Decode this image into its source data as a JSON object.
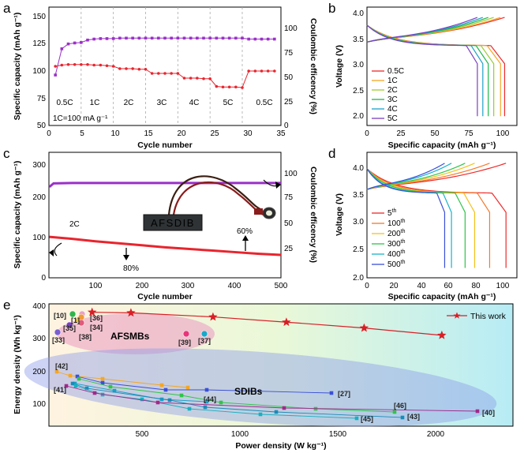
{
  "panels": {
    "a": {
      "label": "a",
      "xlabel": "Cycle number",
      "ylabel_left": "Specific capacity (mAh g⁻¹)",
      "ylabel_right": "Coulombic efficency (%)",
      "xticks": [
        "0",
        "5",
        "10",
        "15",
        "20",
        "25",
        "30",
        "35"
      ],
      "yticks_left": [
        "50",
        "75",
        "100",
        "125",
        "150"
      ],
      "yticks_right": [
        "0",
        "25",
        "50",
        "75",
        "100"
      ],
      "rate_labels": [
        "0.5C",
        "1C",
        "2C",
        "3C",
        "4C",
        "5C",
        "0.5C"
      ],
      "note": "1C=100 mA g⁻¹"
    },
    "b": {
      "label": "b",
      "xlabel": "Specific capacity (mAh g⁻¹)",
      "ylabel": "Voltage (V)",
      "xticks": [
        "0",
        "25",
        "50",
        "75",
        "100"
      ],
      "yticks": [
        "2.0",
        "2.5",
        "3.0",
        "3.5",
        "4.0"
      ],
      "legend": [
        "0.5C",
        "1C",
        "2C",
        "3C",
        "4C",
        "5C"
      ]
    },
    "c": {
      "label": "c",
      "xlabel": "Cycle number",
      "ylabel_left": "Specific capacity (mAh g⁻¹)",
      "ylabel_right": "Coulombic efficency (%)",
      "xticks": [
        "100",
        "200",
        "300",
        "400",
        "500"
      ],
      "yticks_left": [
        "0",
        "100",
        "200",
        "300"
      ],
      "yticks_right": [
        "25",
        "50",
        "75",
        "100"
      ],
      "rate": "2C",
      "ann_80": "80%",
      "ann_60": "60%",
      "device_text": "AFSDIB"
    },
    "d": {
      "label": "d",
      "xlabel": "Specific capacity (mAh g⁻¹)",
      "ylabel": "Voltage (V)",
      "xticks": [
        "0",
        "20",
        "40",
        "60",
        "80",
        "100"
      ],
      "yticks": [
        "2.0",
        "2.5",
        "3.0",
        "3.5",
        "4.0"
      ],
      "legend": [
        {
          "num": "5",
          "sup": "th"
        },
        {
          "num": "100",
          "sup": "th"
        },
        {
          "num": "200",
          "sup": "th"
        },
        {
          "num": "300",
          "sup": "th"
        },
        {
          "num": "400",
          "sup": "th"
        },
        {
          "num": "500",
          "sup": "th"
        }
      ]
    },
    "e": {
      "label": "e",
      "xlabel": "Power density (W kg⁻¹)",
      "ylabel": "Energy density (Wh kg⁻¹)",
      "xticks": [
        "500",
        "1000",
        "1500",
        "2000"
      ],
      "yticks": [
        "100",
        "200",
        "300",
        "400"
      ],
      "legend": "This work",
      "group_labels": [
        "AFSMBs",
        "SDIBs"
      ],
      "refs": [
        "[10]",
        "[1]",
        "[36]",
        "[35]",
        "[34]",
        "[38]",
        "[33]",
        "[39]",
        "[37]",
        "[42]",
        "[41]",
        "[44]",
        "[27]",
        "[46]",
        "[43]",
        "[45]",
        "[40]"
      ]
    }
  },
  "colors": {
    "a_capacity": "#e8252e",
    "a_ce": "#9b30c8",
    "c_capacity": "#e8252e",
    "c_ce": "#9b30c8",
    "this_work": "#d81f26",
    "b_curves": [
      "#ee2a2a",
      "#f5a623",
      "#9acd32",
      "#1db84a",
      "#1aa0c8",
      "#7a3fc0"
    ],
    "d_curves": [
      "#ee2a2a",
      "#f57a2a",
      "#f2c21b",
      "#2fc44a",
      "#18b3c8",
      "#3a4fd8"
    ]
  },
  "chart_data": [
    {
      "panel": "a",
      "type": "line",
      "xlabel": "Cycle number",
      "ylabel": "Specific capacity (mAh g⁻¹)",
      "xlim": [
        0,
        36
      ],
      "ylim": [
        50,
        150
      ],
      "y2lim": [
        0,
        100
      ],
      "series": [
        {
          "axis": "left",
          "x": [
            1,
            2,
            3,
            4,
            5,
            6,
            7,
            8,
            9,
            10,
            11,
            12,
            13,
            14,
            15,
            16,
            17,
            18,
            19,
            20,
            21,
            22,
            23,
            24,
            25,
            26,
            27,
            28,
            29,
            30,
            31,
            32,
            33,
            34,
            35
          ],
          "y": [
            100,
            101,
            101.5,
            101.5,
            101.5,
            101.5,
            101,
            101,
            100.5,
            100,
            98,
            98,
            98,
            97.5,
            97.5,
            94,
            94,
            94,
            94,
            94,
            90,
            90,
            90,
            89.5,
            89.5,
            83,
            82.5,
            82.5,
            82.5,
            82,
            96,
            96,
            96,
            96,
            96
          ]
        },
        {
          "axis": "right",
          "x": [
            1,
            2,
            3,
            4,
            5,
            6,
            7,
            8,
            9,
            10,
            11,
            12,
            13,
            14,
            15,
            16,
            17,
            18,
            19,
            20,
            21,
            22,
            23,
            24,
            25,
            26,
            27,
            28,
            29,
            30,
            31,
            32,
            33,
            34,
            35
          ],
          "y": [
            52,
            79,
            84,
            85,
            85.5,
            88,
            89,
            89.5,
            89.5,
            89.5,
            90,
            90,
            90,
            90,
            90,
            90,
            90,
            90,
            90,
            90,
            90,
            90,
            90,
            90,
            90,
            90,
            90,
            90,
            90,
            90,
            89,
            89,
            89,
            89,
            89
          ]
        }
      ]
    },
    {
      "panel": "b",
      "type": "line",
      "xlabel": "Specific capacity (mAh g⁻¹)",
      "ylabel": "Voltage (V)",
      "xlim": [
        0,
        110
      ],
      "ylim": [
        2.0,
        4.3
      ],
      "capacities": [
        101,
        98,
        93,
        89,
        85,
        81
      ]
    },
    {
      "panel": "c",
      "type": "line",
      "xlabel": "Cycle number",
      "ylabel": "Specific capacity (mAh g⁻¹)",
      "xlim": [
        0,
        500
      ],
      "ylim": [
        0,
        300
      ],
      "y2lim": [
        0,
        110
      ],
      "series": [
        {
          "axis": "left",
          "x": [
            1,
            50,
            100,
            150,
            200,
            250,
            300,
            350,
            400,
            450,
            500
          ],
          "y": [
            102,
            97,
            91,
            86,
            81,
            76,
            72,
            68,
            64,
            60,
            57
          ]
        },
        {
          "axis": "right",
          "x": [
            1,
            10,
            50,
            100,
            200,
            300,
            400,
            500
          ],
          "y": [
            95,
            99,
            99.5,
            99.5,
            99.5,
            99.5,
            99.5,
            99.5
          ]
        }
      ]
    },
    {
      "panel": "d",
      "type": "line",
      "xlabel": "Specific capacity (mAh g⁻¹)",
      "ylabel": "Voltage (V)",
      "xlim": [
        0,
        110
      ],
      "ylim": [
        2.0,
        4.3
      ],
      "capacities": [
        102,
        90,
        79,
        72,
        62,
        57
      ]
    },
    {
      "panel": "e",
      "type": "scatter",
      "xlabel": "Power density (W kg⁻¹)",
      "ylabel": "Energy density (Wh kg⁻¹)",
      "xlim": [
        0,
        2300
      ],
      "ylim": [
        0,
        400
      ],
      "this_work": {
        "x": [
          200,
          380,
          760,
          1100,
          1460,
          1820
        ],
        "y": [
          382,
          380,
          366,
          348,
          328,
          303
        ]
      }
    }
  ]
}
